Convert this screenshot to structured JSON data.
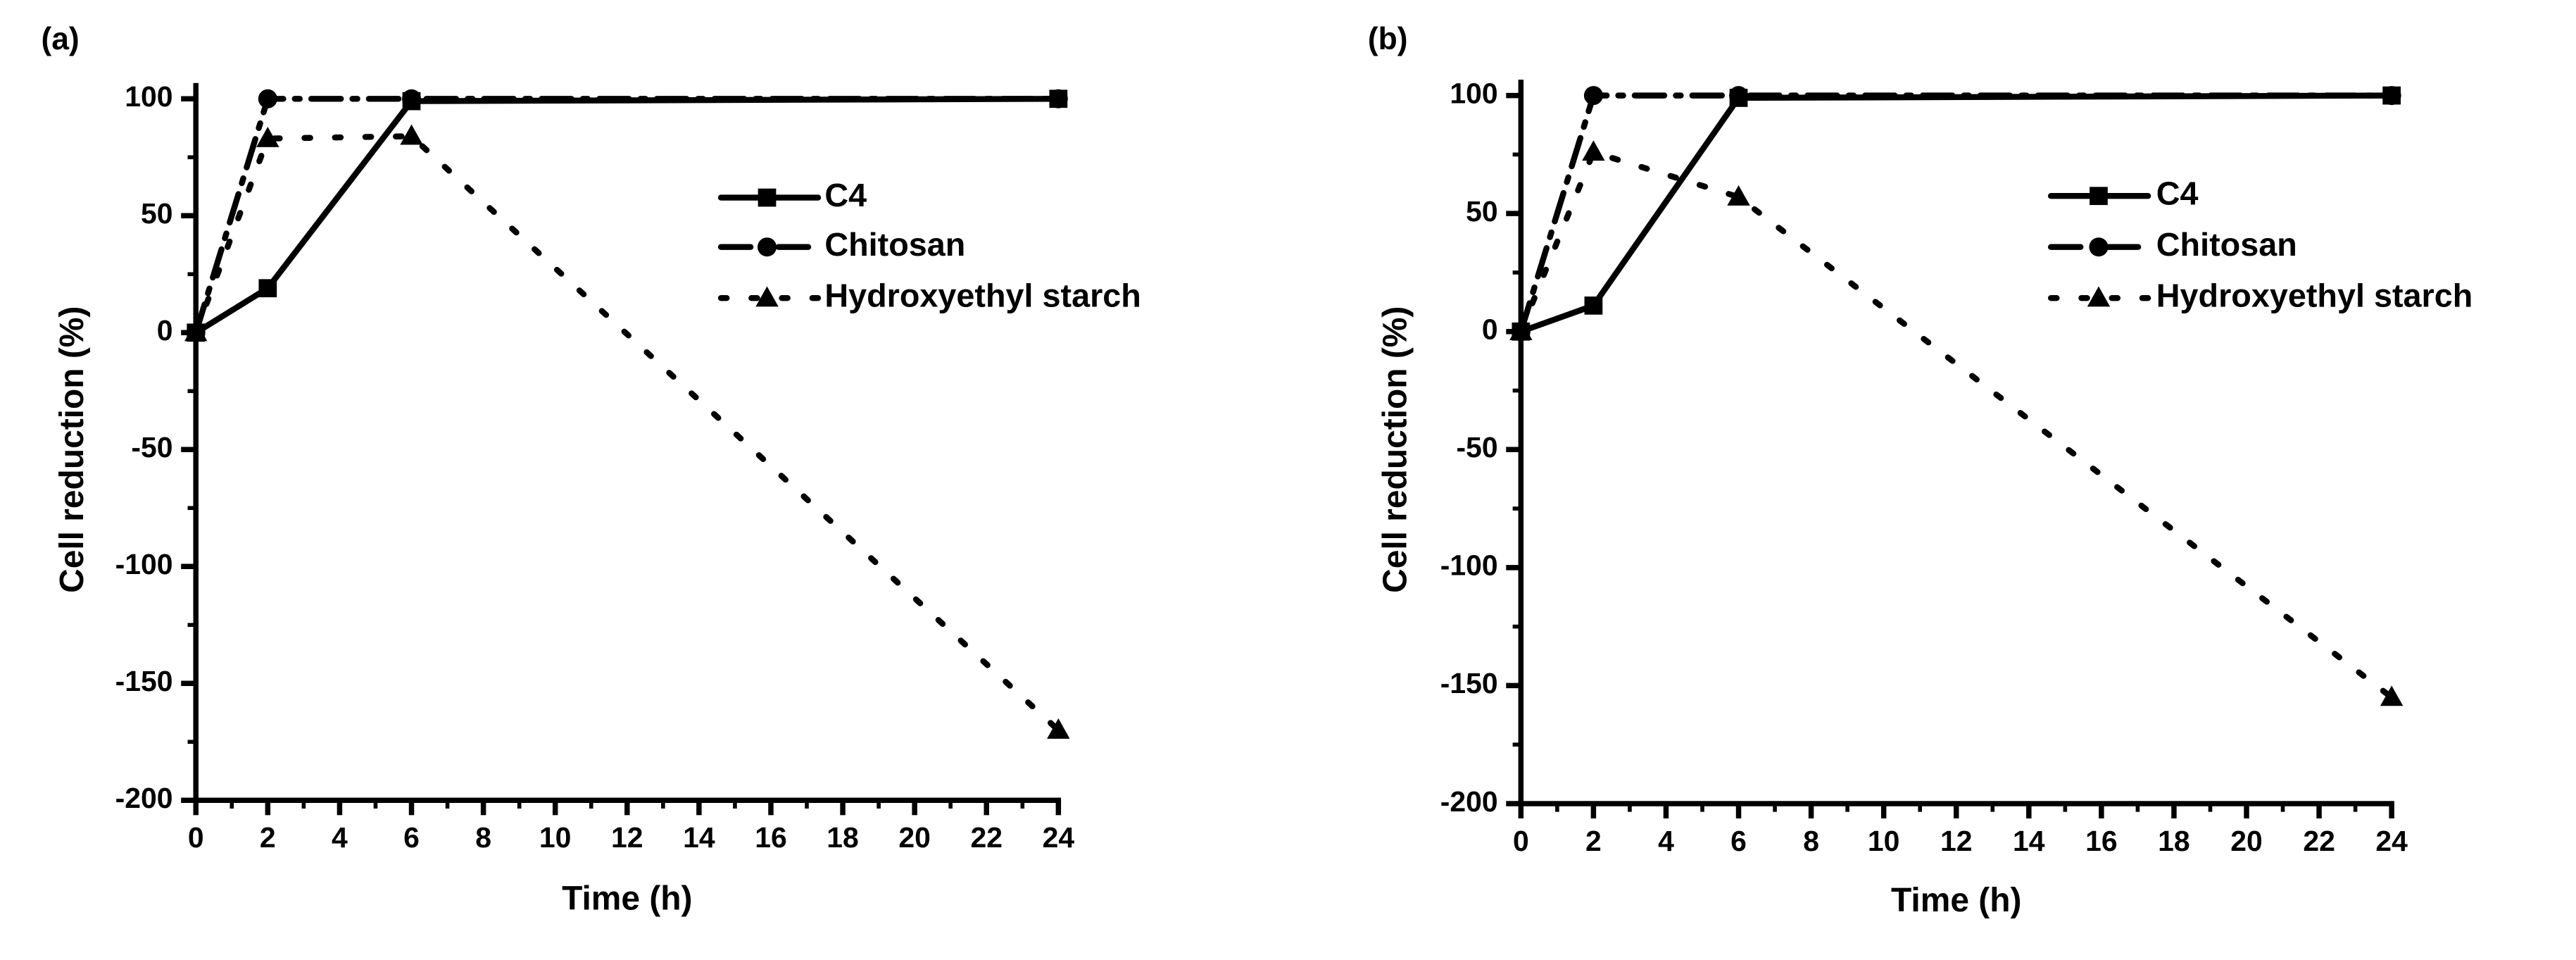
{
  "figure": {
    "layout": "two panels side by side"
  },
  "chart_data": [
    {
      "panel_label": "(a)",
      "type": "line",
      "title": "",
      "xlabel": "Time (h)",
      "ylabel": "Cell reduction (%)",
      "xlim": [
        0,
        24
      ],
      "ylim": [
        -200,
        100
      ],
      "xticks": [
        0,
        2,
        4,
        6,
        8,
        10,
        12,
        14,
        16,
        18,
        20,
        22,
        24
      ],
      "yticks": [
        100,
        50,
        0,
        -50,
        -100,
        -150,
        -200
      ],
      "grid": false,
      "legend_position": "upper-right",
      "series": [
        {
          "name": "C4",
          "line_style": "solid",
          "marker": "square",
          "x": [
            0,
            2,
            6,
            24
          ],
          "y": [
            0,
            19,
            99,
            100
          ]
        },
        {
          "name": "Chitosan",
          "line_style": "dash-dot",
          "marker": "circle",
          "x": [
            0,
            2,
            6,
            24
          ],
          "y": [
            0,
            100,
            100,
            100
          ]
        },
        {
          "name": "Hydroxyethyl starch",
          "line_style": "dotted",
          "marker": "triangle",
          "x": [
            0,
            2,
            6,
            24
          ],
          "y": [
            0,
            83,
            84,
            -170
          ]
        }
      ]
    },
    {
      "panel_label": "(b)",
      "type": "line",
      "title": "",
      "xlabel": "Time (h)",
      "ylabel": "Cell reduction (%)",
      "xlim": [
        0,
        24
      ],
      "ylim": [
        -200,
        100
      ],
      "xticks": [
        0,
        2,
        4,
        6,
        8,
        10,
        12,
        14,
        16,
        18,
        20,
        22,
        24
      ],
      "yticks": [
        100,
        50,
        0,
        -50,
        -100,
        -150,
        -200
      ],
      "grid": false,
      "legend_position": "upper-right",
      "series": [
        {
          "name": "C4",
          "line_style": "solid",
          "marker": "square",
          "x": [
            0,
            2,
            6,
            24
          ],
          "y": [
            0,
            11,
            99,
            100
          ]
        },
        {
          "name": "Chitosan",
          "line_style": "dash-dot",
          "marker": "circle",
          "x": [
            0,
            2,
            6,
            24
          ],
          "y": [
            0,
            100,
            100,
            100
          ]
        },
        {
          "name": "Hydroxyethyl starch",
          "line_style": "dotted",
          "marker": "triangle",
          "x": [
            0,
            2,
            6,
            24
          ],
          "y": [
            0,
            76,
            57,
            -155
          ]
        }
      ]
    }
  ]
}
